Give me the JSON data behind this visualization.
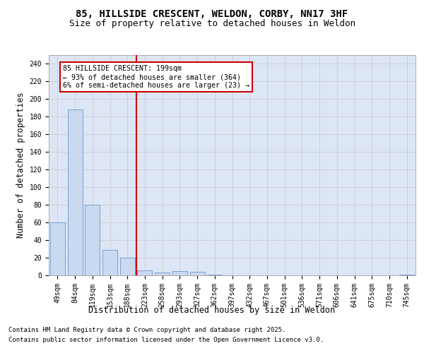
{
  "title_line1": "85, HILLSIDE CRESCENT, WELDON, CORBY, NN17 3HF",
  "title_line2": "Size of property relative to detached houses in Weldon",
  "xlabel": "Distribution of detached houses by size in Weldon",
  "ylabel": "Number of detached properties",
  "categories": [
    "49sqm",
    "84sqm",
    "119sqm",
    "153sqm",
    "188sqm",
    "223sqm",
    "258sqm",
    "293sqm",
    "327sqm",
    "362sqm",
    "397sqm",
    "432sqm",
    "467sqm",
    "501sqm",
    "536sqm",
    "571sqm",
    "606sqm",
    "641sqm",
    "675sqm",
    "710sqm",
    "745sqm"
  ],
  "values": [
    60,
    188,
    80,
    29,
    20,
    6,
    3,
    5,
    4,
    1,
    0,
    0,
    0,
    0,
    0,
    0,
    0,
    0,
    0,
    0,
    1
  ],
  "bar_color": "#c9d9f0",
  "bar_edge_color": "#6699cc",
  "vline_color": "#cc0000",
  "annotation_text": "85 HILLSIDE CRESCENT: 199sqm\n← 93% of detached houses are smaller (364)\n6% of semi-detached houses are larger (23) →",
  "annotation_box_color": "#ffffff",
  "annotation_box_edge": "#cc0000",
  "ylim": [
    0,
    250
  ],
  "yticks": [
    0,
    20,
    40,
    60,
    80,
    100,
    120,
    140,
    160,
    180,
    200,
    220,
    240
  ],
  "grid_color": "#cccccc",
  "bg_color": "#dde6f5",
  "footer1": "Contains HM Land Registry data © Crown copyright and database right 2025.",
  "footer2": "Contains public sector information licensed under the Open Government Licence v3.0.",
  "title_fontsize": 10,
  "subtitle_fontsize": 9,
  "tick_fontsize": 7,
  "label_fontsize": 8.5,
  "footer_fontsize": 6.5
}
